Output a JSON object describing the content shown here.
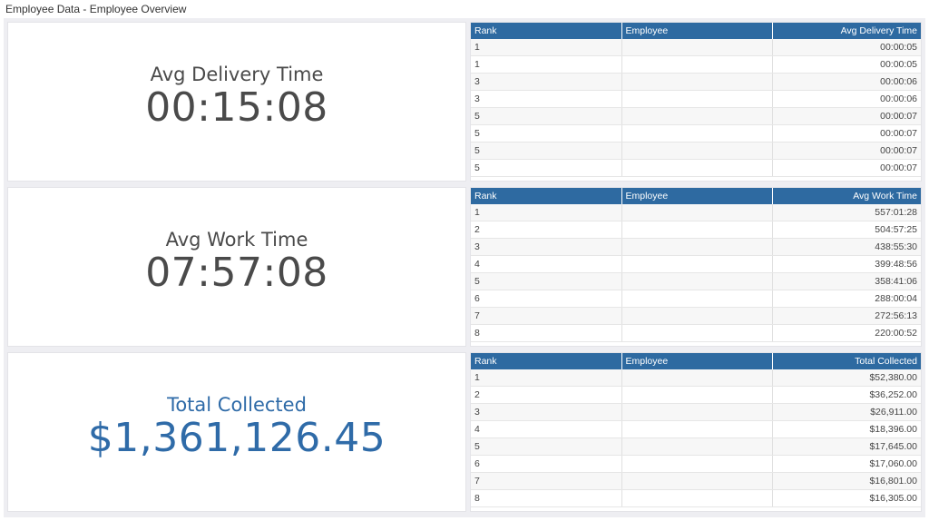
{
  "header": {
    "title": "Employee Data - Employee Overview"
  },
  "kpis": [
    {
      "label": "Avg Delivery Time",
      "value": "00:15:08",
      "accent": "#4a4a4a"
    },
    {
      "label": "Avg Work Time",
      "value": "07:57:08",
      "accent": "#4a4a4a"
    },
    {
      "label": "Total Collected",
      "value": "$1,361,126.45",
      "accent": "#2f6ba8"
    }
  ],
  "tables": [
    {
      "columns": [
        "Rank",
        "Employee",
        "Avg Delivery Time"
      ],
      "rows": [
        [
          "1",
          "",
          "00:00:05"
        ],
        [
          "1",
          "",
          "00:00:05"
        ],
        [
          "3",
          "",
          "00:00:06"
        ],
        [
          "3",
          "",
          "00:00:06"
        ],
        [
          "5",
          "",
          "00:00:07"
        ],
        [
          "5",
          "",
          "00:00:07"
        ],
        [
          "5",
          "",
          "00:00:07"
        ],
        [
          "5",
          "",
          "00:00:07"
        ]
      ]
    },
    {
      "columns": [
        "Rank",
        "Employee",
        "Avg Work Time"
      ],
      "rows": [
        [
          "1",
          "",
          "557:01:28"
        ],
        [
          "2",
          "",
          "504:57:25"
        ],
        [
          "3",
          "",
          "438:55:30"
        ],
        [
          "4",
          "",
          "399:48:56"
        ],
        [
          "5",
          "",
          "358:41:06"
        ],
        [
          "6",
          "",
          "288:00:04"
        ],
        [
          "7",
          "",
          "272:56:13"
        ],
        [
          "8",
          "",
          "220:00:52"
        ]
      ]
    },
    {
      "columns": [
        "Rank",
        "Employee",
        "Total Collected"
      ],
      "rows": [
        [
          "1",
          "",
          "$52,380.00"
        ],
        [
          "2",
          "",
          "$36,252.00"
        ],
        [
          "3",
          "",
          "$26,911.00"
        ],
        [
          "4",
          "",
          "$18,396.00"
        ],
        [
          "5",
          "",
          "$17,645.00"
        ],
        [
          "6",
          "",
          "$17,060.00"
        ],
        [
          "7",
          "",
          "$16,801.00"
        ],
        [
          "8",
          "",
          "$16,305.00"
        ]
      ]
    }
  ],
  "colors": {
    "table_header": "#2e6aa1",
    "kpi_blue": "#2f6ba8"
  }
}
